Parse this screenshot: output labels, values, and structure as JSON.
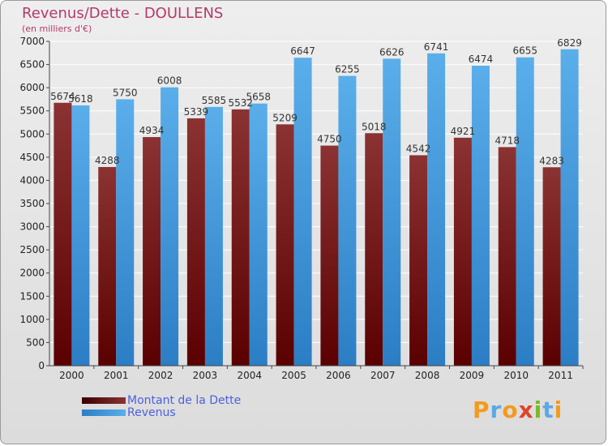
{
  "header": {
    "title": "Revenus/Dette - DOULLENS",
    "subtitle": "(en milliers d'€)"
  },
  "legend": {
    "dette": "Montant de la Dette",
    "revenus": "Revenus"
  },
  "logo": {
    "text": "Proxiti",
    "letters": [
      "P",
      "r",
      "o",
      "x",
      "i",
      "t",
      "i"
    ],
    "colors": [
      "#f39a1e",
      "#5aa9e6",
      "#f39a1e",
      "#e0442a",
      "#7ab929",
      "#5aa9e6",
      "#f39a1e"
    ]
  },
  "colors": {
    "dette_top": "#8b3232",
    "dette_bottom": "#5a0000",
    "revenus_top": "#5aaeea",
    "revenus_bottom": "#2b7ec4",
    "axis_text": "#222222",
    "grid": "#ffffff"
  },
  "chart_data": {
    "type": "bar",
    "title": "Revenus/Dette - DOULLENS",
    "ylabel": "(en milliers d'€)",
    "xlabel": "",
    "ylim": [
      0,
      7000
    ],
    "yticks": [
      0,
      500,
      1000,
      1500,
      2000,
      2500,
      3000,
      3500,
      4000,
      4500,
      5000,
      5500,
      6000,
      6500,
      7000
    ],
    "categories": [
      "2000",
      "2001",
      "2002",
      "2003",
      "2004",
      "2005",
      "2006",
      "2007",
      "2008",
      "2009",
      "2010",
      "2011"
    ],
    "series": [
      {
        "name": "Montant de la Dette",
        "values": [
          5674,
          4288,
          4934,
          5339,
          5532,
          5209,
          4750,
          5018,
          4542,
          4921,
          4718,
          4283
        ],
        "labels": [
          "5674",
          "4288",
          "4934",
          "5339",
          "5532",
          "5209",
          "4750",
          "5018",
          "4542",
          "4921",
          "4718",
          "4283"
        ]
      },
      {
        "name": "Revenus",
        "values": [
          5618,
          5750,
          6008,
          5585,
          5658,
          6647,
          6255,
          6626,
          6741,
          6474,
          6655,
          6829
        ],
        "labels": [
          "5618",
          "5750",
          "6008",
          "5585",
          "5658",
          "6647",
          "6255",
          "6626",
          "6741",
          "6474",
          "6655",
          "6829"
        ]
      }
    ],
    "grid": true,
    "legend_position": "bottom-left"
  }
}
